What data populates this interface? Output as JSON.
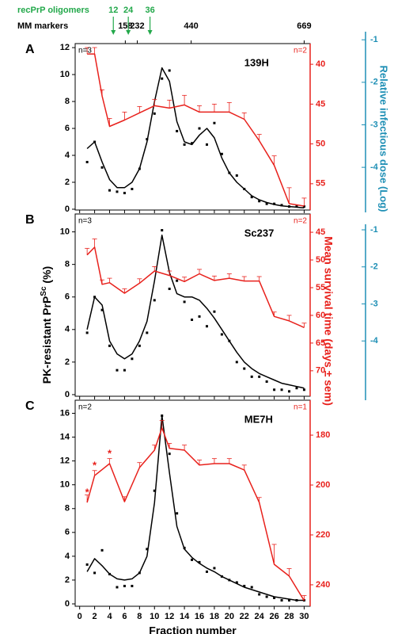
{
  "chart_data": [
    {
      "type": "combo",
      "panel_label": "A",
      "strain": "139H",
      "n_left": "n=3",
      "n_right": "n=2",
      "xlim": [
        -0.6,
        30.8
      ],
      "xticks": [
        0,
        2,
        4,
        6,
        8,
        10,
        12,
        14,
        16,
        18,
        20,
        22,
        24,
        26,
        28,
        30
      ],
      "show_xtick_labels": false,
      "ylim": [
        -0.06,
        12.3
      ],
      "yticks": [
        0,
        2,
        4,
        6,
        8,
        10,
        12
      ],
      "y2lim": [
        58.3,
        37.4
      ],
      "y2ticks": [
        40,
        45,
        50,
        55
      ],
      "y2color": "#e8211c",
      "y3lim": [
        -5.06,
        -0.81
      ],
      "y3ticks": [
        -1,
        -2,
        -3,
        -4
      ],
      "y3color": "#1e8fb5",
      "y3label": "Relative infectious dose (Log)",
      "mm_markers": {
        "label": "MM markers",
        "ticks": [
          {
            "value": 6.1,
            "label": "158"
          },
          {
            "value": 7.7,
            "label": "232"
          },
          {
            "value": 14.9,
            "label": "440"
          },
          {
            "value": 30,
            "label": "669"
          }
        ]
      },
      "oligomers": {
        "label": "recPrP oligomers",
        "color": "#22a84a",
        "ticks": [
          {
            "value": 4.5,
            "label": "12"
          },
          {
            "value": 6.5,
            "label": "24"
          },
          {
            "value": 9.4,
            "label": "36"
          }
        ]
      },
      "series": [
        {
          "type": "scatter",
          "color": "#000000",
          "x": [
            1,
            2,
            3,
            4,
            5,
            6,
            7,
            8,
            9,
            10,
            11,
            12,
            13,
            14,
            15,
            16,
            17,
            18,
            19,
            20,
            21,
            22,
            23,
            24,
            25,
            26,
            27,
            28,
            29,
            30
          ],
          "values": [
            3.5,
            5.0,
            3.1,
            1.4,
            1.3,
            1.2,
            1.5,
            3.0,
            5.2,
            7.1,
            9.7,
            10.3,
            5.8,
            4.8,
            4.9,
            6.0,
            4.8,
            6.4,
            4.1,
            2.7,
            2.5,
            1.5,
            0.9,
            0.6,
            0.4,
            0.4,
            0.3,
            0.2,
            0.2,
            0.2
          ]
        },
        {
          "type": "line",
          "color": "#000000",
          "x": [
            1,
            2,
            3,
            4,
            5,
            6,
            7,
            8,
            9,
            10,
            11,
            12,
            13,
            14,
            15,
            16,
            17,
            18,
            19,
            20,
            21,
            22,
            23,
            24,
            25,
            26,
            27,
            28,
            29,
            30
          ],
          "values": [
            4.5,
            5.0,
            3.5,
            2.2,
            1.6,
            1.6,
            2.0,
            3.0,
            5.0,
            8.0,
            10.5,
            9.5,
            6.5,
            5.0,
            4.8,
            5.5,
            6.0,
            5.3,
            3.8,
            2.7,
            2.0,
            1.5,
            1.0,
            0.7,
            0.5,
            0.35,
            0.25,
            0.2,
            0.15,
            0.1
          ]
        },
        {
          "type": "line",
          "axis": "y2",
          "color": "#e8211c",
          "x": [
            1,
            2,
            3,
            4,
            6,
            8,
            10,
            12,
            14,
            16,
            18,
            20,
            22,
            24,
            26,
            28,
            30
          ],
          "values": [
            38.7,
            38.7,
            44.0,
            47.8,
            47.0,
            46.1,
            45.2,
            45.5,
            45.1,
            46.0,
            46.0,
            46.0,
            46.9,
            49.6,
            52.7,
            57.5,
            57.8
          ],
          "errors": [
            0.8,
            0.8,
            0.8,
            1.0,
            1.0,
            0.8,
            0.8,
            1.0,
            1.2,
            0.8,
            1.0,
            1.2,
            0.8,
            0.8,
            1.2,
            2.0,
            1.0
          ]
        }
      ]
    },
    {
      "type": "combo",
      "panel_label": "B",
      "strain": "Sc237",
      "n_left": "n=3",
      "n_right": "n=2",
      "xlim": [
        -0.6,
        30.8
      ],
      "xticks": [
        0,
        2,
        4,
        6,
        8,
        10,
        12,
        14,
        16,
        18,
        20,
        22,
        24,
        26,
        28,
        30
      ],
      "show_xtick_labels": false,
      "ylim": [
        -0.1,
        11.1
      ],
      "yticks": [
        0,
        2,
        4,
        6,
        8,
        10
      ],
      "ylabel": {
        "text": "PK-resistant PrP",
        "sup": "Sc",
        "suffix": " (%)"
      },
      "y2lim": [
        74.6,
        41.7
      ],
      "y2ticks": [
        45,
        50,
        55,
        60,
        65,
        70
      ],
      "y2color": "#e8211c",
      "y2label": "Mean survival time (days ± sem)",
      "y3lim": [
        -5.6,
        -0.85
      ],
      "y3ticks": [
        -1,
        -2,
        -3,
        -4
      ],
      "y3color": "#1e8fb5",
      "series": [
        {
          "type": "scatter",
          "color": "#000000",
          "x": [
            1,
            2,
            3,
            4,
            5,
            6,
            7,
            8,
            9,
            10,
            11,
            12,
            13,
            14,
            15,
            16,
            17,
            18,
            19,
            20,
            21,
            22,
            23,
            24,
            25,
            26,
            27,
            28,
            29,
            30
          ],
          "values": [
            3.8,
            6.0,
            5.2,
            3.0,
            1.5,
            1.5,
            2.2,
            3.0,
            3.8,
            5.8,
            10.1,
            6.5,
            7.0,
            5.7,
            4.6,
            4.8,
            4.2,
            5.1,
            3.7,
            3.3,
            2.0,
            1.6,
            1.1,
            1.1,
            0.8,
            0.3,
            0.3,
            0.2,
            0.4,
            0.3
          ]
        },
        {
          "type": "line",
          "color": "#000000",
          "x": [
            1,
            2,
            3,
            4,
            5,
            6,
            7,
            8,
            9,
            10,
            11,
            12,
            13,
            14,
            15,
            16,
            17,
            18,
            19,
            20,
            21,
            22,
            23,
            24,
            25,
            26,
            27,
            28,
            29,
            30
          ],
          "values": [
            4.0,
            6.0,
            5.5,
            3.3,
            2.5,
            2.2,
            2.5,
            3.3,
            4.5,
            7.0,
            9.8,
            7.5,
            6.2,
            6.0,
            6.0,
            5.8,
            5.3,
            4.7,
            4.0,
            3.3,
            2.6,
            2.0,
            1.6,
            1.3,
            1.1,
            0.9,
            0.7,
            0.6,
            0.5,
            0.4
          ]
        },
        {
          "type": "line",
          "axis": "y2",
          "color": "#e8211c",
          "x": [
            1,
            2,
            3,
            4,
            6,
            8,
            10,
            12,
            14,
            16,
            18,
            20,
            22,
            24,
            26,
            28,
            30
          ],
          "values": [
            49.1,
            47.7,
            54.4,
            54.1,
            56.0,
            54.2,
            52.0,
            52.8,
            53.9,
            52.5,
            53.7,
            53.3,
            53.8,
            53.8,
            60.2,
            61.0,
            62.2
          ],
          "errors": [
            1.2,
            1.5,
            0.8,
            0.8,
            0.8,
            0.8,
            0.8,
            0.8,
            0.8,
            0.8,
            0.8,
            0.8,
            0.8,
            0.8,
            0.8,
            1.0,
            0.8
          ]
        }
      ]
    },
    {
      "type": "combo",
      "panel_label": "C",
      "strain": "ME7H",
      "n_left": "n=2",
      "n_right": "n=1",
      "xlim": [
        -0.6,
        30.8
      ],
      "xticks": [
        0,
        2,
        4,
        6,
        8,
        10,
        12,
        14,
        16,
        18,
        20,
        22,
        24,
        26,
        28,
        30
      ],
      "show_xtick_labels": true,
      "xlabel": "Fraction number",
      "ylim": [
        -0.2,
        17.1
      ],
      "yticks": [
        0,
        2,
        4,
        6,
        8,
        10,
        12,
        14,
        16
      ],
      "y2lim": [
        248.6,
        166
      ],
      "y2ticks": [
        180,
        200,
        220,
        240
      ],
      "y2color": "#e8211c",
      "asterisks": [
        {
          "x": 1,
          "text": "*"
        },
        {
          "x": 2,
          "text": "*"
        },
        {
          "x": 4,
          "text": "*"
        }
      ],
      "series": [
        {
          "type": "scatter",
          "color": "#000000",
          "x": [
            1,
            2,
            3,
            4,
            5,
            6,
            7,
            8,
            9,
            10,
            11,
            12,
            13,
            14,
            15,
            16,
            17,
            18,
            19,
            20,
            21,
            22,
            23,
            24,
            25,
            26,
            27,
            28,
            29,
            30
          ],
          "values": [
            3.3,
            2.6,
            4.5,
            2.5,
            1.4,
            1.5,
            1.5,
            2.6,
            4.6,
            9.5,
            15.8,
            12.6,
            7.6,
            4.7,
            3.7,
            3.5,
            2.7,
            3.0,
            2.3,
            2.0,
            1.8,
            1.5,
            1.4,
            0.8,
            0.6,
            0.5,
            0.3,
            0.3,
            0.3,
            0.3
          ]
        },
        {
          "type": "line",
          "color": "#000000",
          "x": [
            1,
            2,
            3,
            4,
            5,
            6,
            7,
            8,
            9,
            10,
            11,
            12,
            13,
            14,
            15,
            16,
            17,
            18,
            19,
            20,
            21,
            22,
            23,
            24,
            25,
            26,
            27,
            28,
            29,
            30
          ],
          "values": [
            2.7,
            3.8,
            3.2,
            2.5,
            2.1,
            2.0,
            2.1,
            2.6,
            4.0,
            8.5,
            15.8,
            11.0,
            6.5,
            4.6,
            3.9,
            3.4,
            3.0,
            2.7,
            2.3,
            2.0,
            1.7,
            1.4,
            1.2,
            1.0,
            0.8,
            0.6,
            0.5,
            0.4,
            0.3,
            0.3
          ]
        },
        {
          "type": "line",
          "axis": "y2",
          "color": "#e8211c",
          "x": [
            1,
            2,
            4,
            6,
            8,
            10,
            11,
            12,
            14,
            16,
            18,
            20,
            22,
            24,
            26,
            28,
            30
          ],
          "values": [
            207,
            196.2,
            191.4,
            206.7,
            193,
            186,
            177.1,
            185.3,
            186,
            192,
            191.4,
            191.4,
            194,
            207,
            231.8,
            236.5,
            246.3
          ],
          "errors": [
            3,
            2,
            2,
            2,
            2,
            2,
            3,
            2,
            2,
            2,
            2,
            2,
            2,
            2,
            8,
            3,
            2
          ]
        }
      ]
    }
  ]
}
